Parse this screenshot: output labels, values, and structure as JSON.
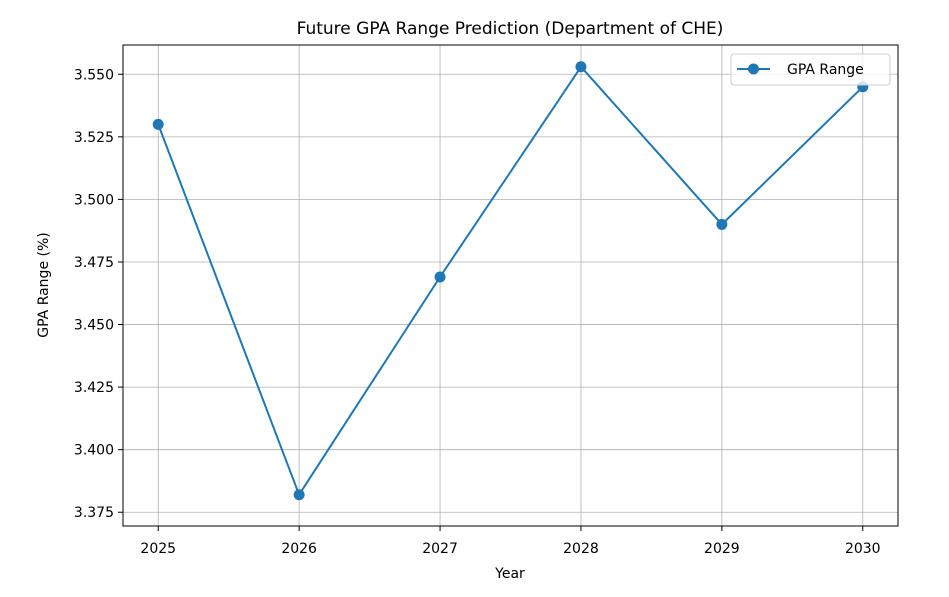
{
  "chart_data": {
    "type": "line",
    "title": "Future GPA Range Prediction (Department of CHE)",
    "xlabel": "Year",
    "ylabel": "GPA Range (%)",
    "x": [
      2025,
      2026,
      2027,
      2028,
      2029,
      2030
    ],
    "x_tick_labels": [
      "2025",
      "2026",
      "2027",
      "2028",
      "2029",
      "2030"
    ],
    "y_ticks": [
      3.375,
      3.4,
      3.425,
      3.45,
      3.475,
      3.5,
      3.525,
      3.55
    ],
    "y_tick_labels": [
      "3.375",
      "3.400",
      "3.425",
      "3.450",
      "3.475",
      "3.500",
      "3.525",
      "3.550"
    ],
    "xlim": [
      2024.75,
      2030.25
    ],
    "ylim": [
      3.3695,
      3.5617
    ],
    "grid": true,
    "legend_position": "top-right",
    "series": [
      {
        "name": "GPA Range",
        "color": "#1f77b4",
        "marker": "circle",
        "values": [
          3.53,
          3.382,
          3.469,
          3.553,
          3.49,
          3.545
        ]
      }
    ]
  }
}
